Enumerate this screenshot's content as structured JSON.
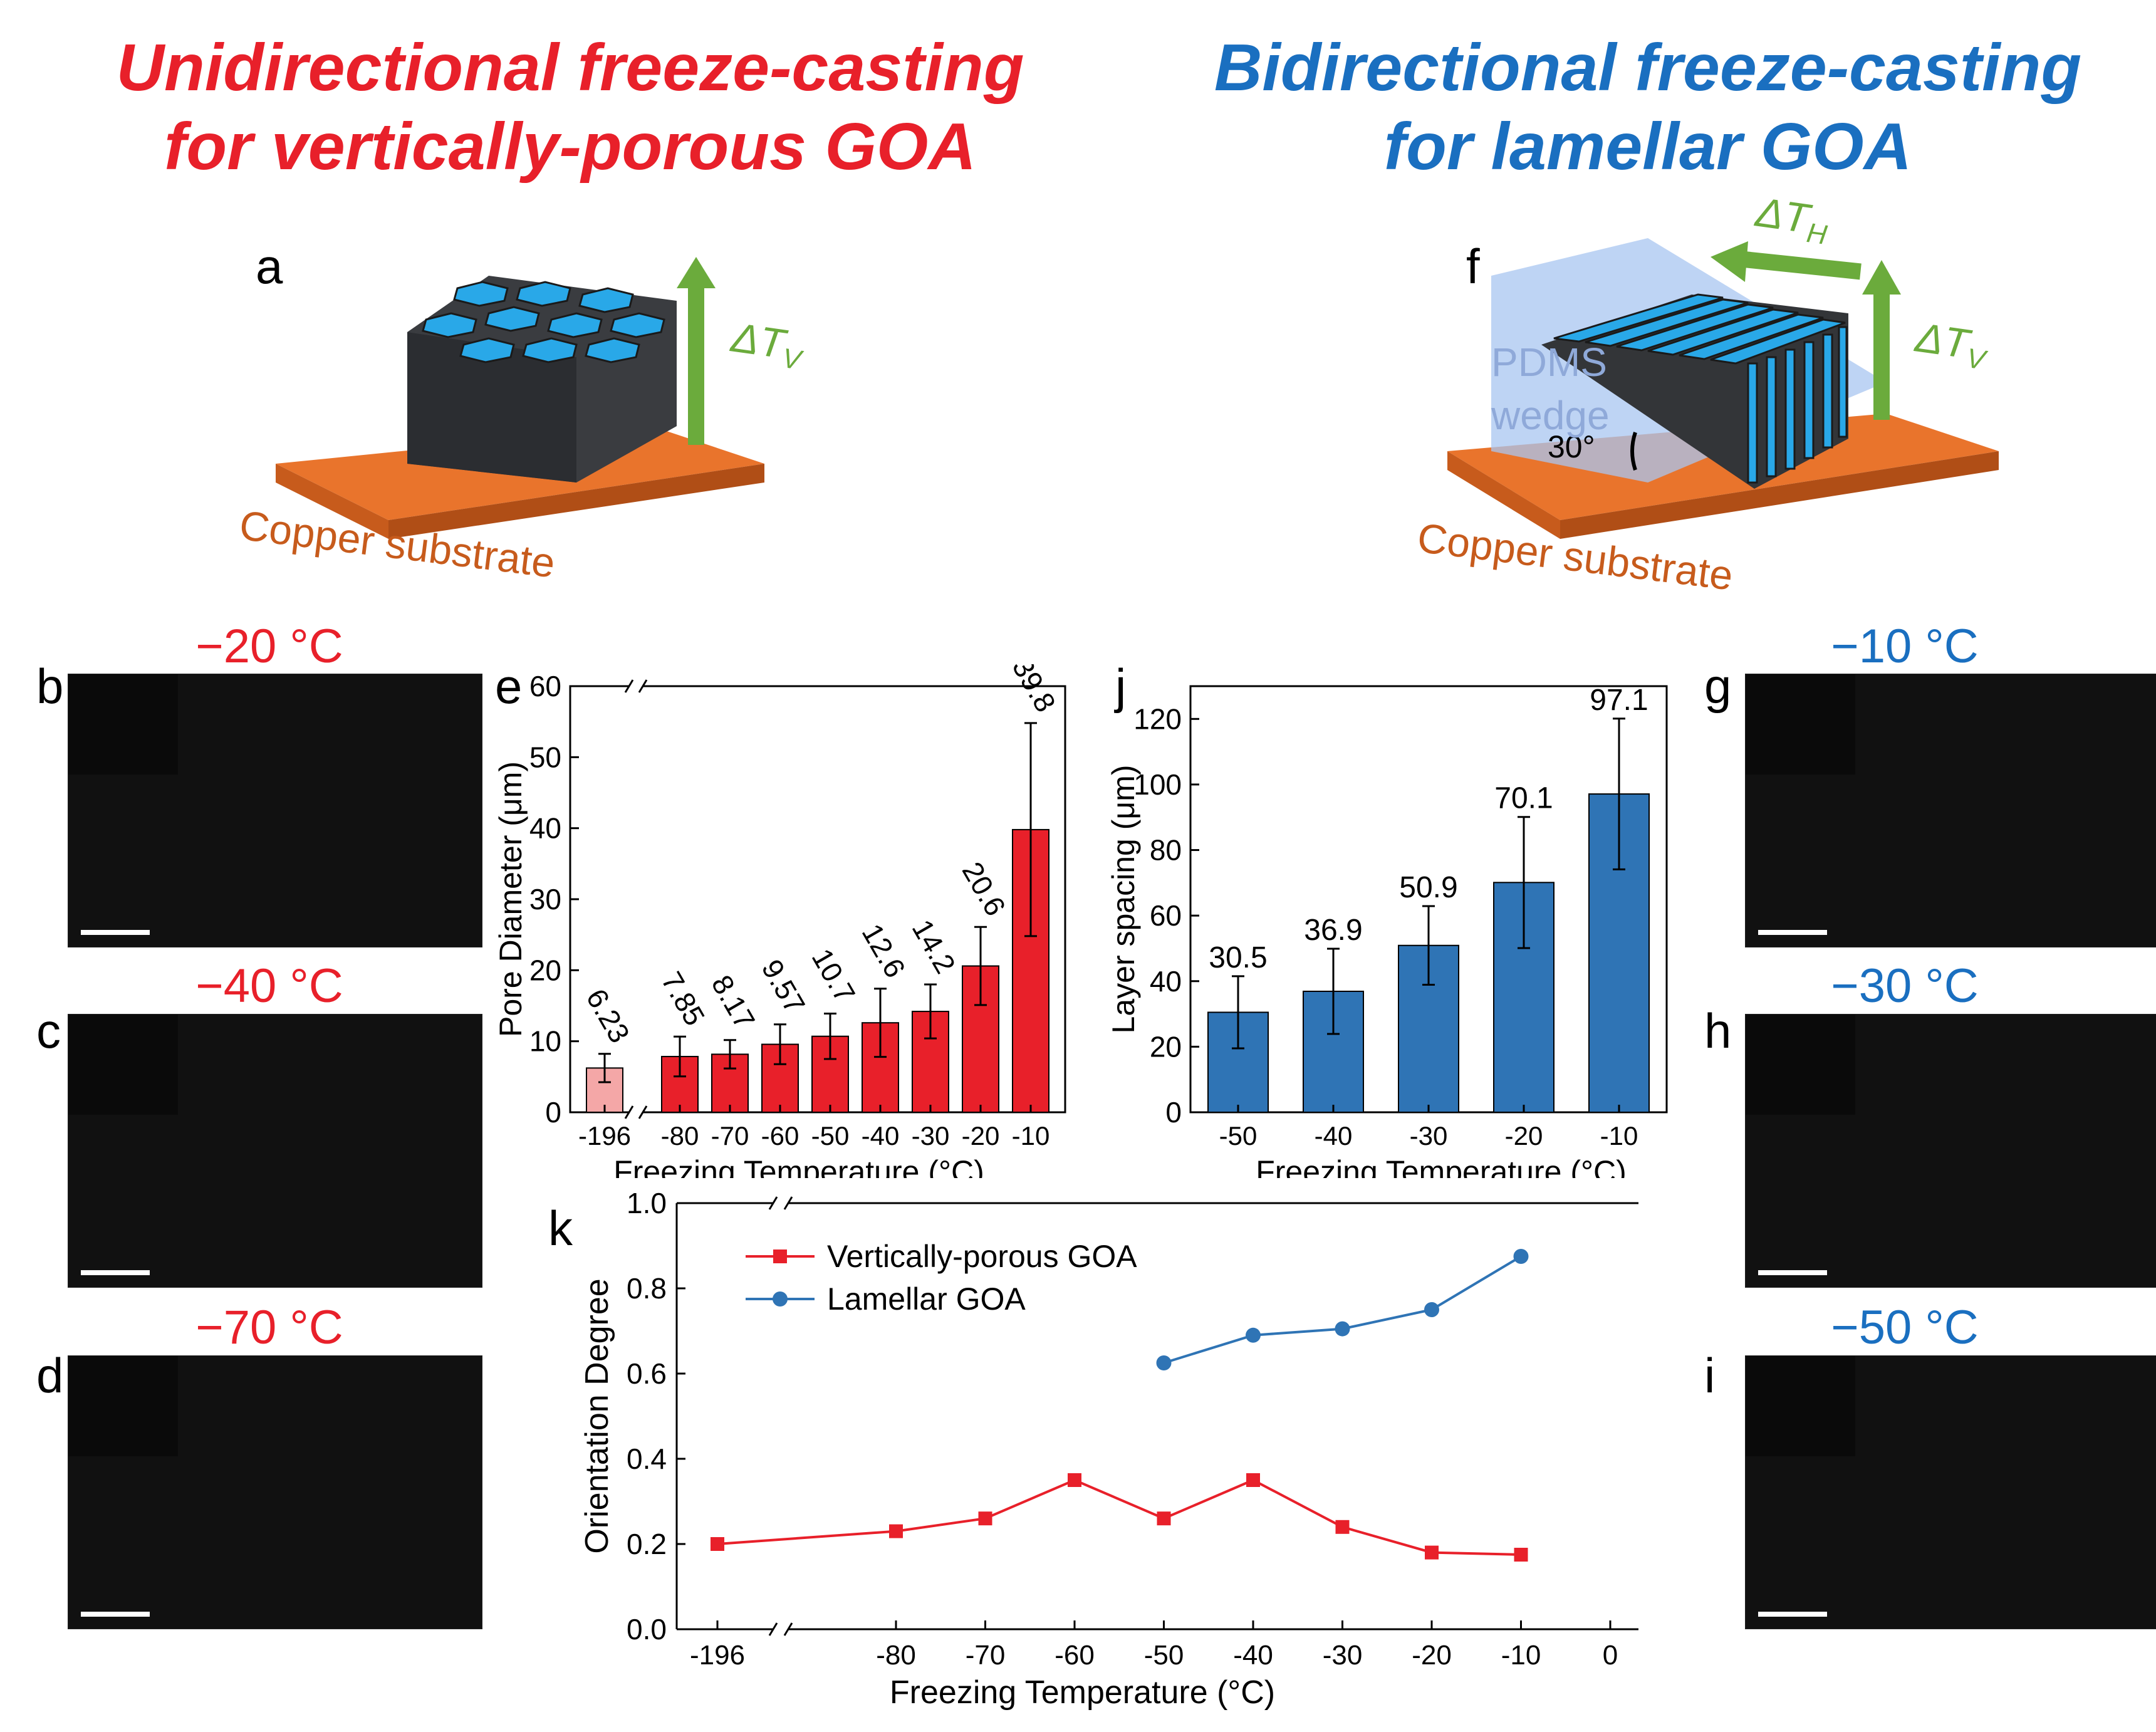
{
  "titles": {
    "left_line1": "Unidirectional freeze-casting",
    "left_line2": "for vertically-porous GOA",
    "right_line1": "Bidirectional freeze-casting",
    "right_line2": "for lamellar GOA"
  },
  "schematic_a": {
    "panel": "a",
    "delta_t_v": "ΔT",
    "delta_t_v_sub": "V",
    "substrate": "Copper substrate"
  },
  "schematic_f": {
    "panel": "f",
    "delta_t_h": "ΔT",
    "delta_t_h_sub": "H",
    "delta_t_v": "ΔT",
    "delta_t_v_sub": "V",
    "wedge_line1": "PDMS",
    "wedge_line2": "wedge",
    "angle": "30°",
    "substrate": "Copper substrate"
  },
  "sem_left": [
    {
      "panel": "b",
      "temp": "−20 °C"
    },
    {
      "panel": "c",
      "temp": "−40 °C"
    },
    {
      "panel": "d",
      "temp": "−70 °C"
    }
  ],
  "sem_right": [
    {
      "panel": "g",
      "temp": "−10 °C"
    },
    {
      "panel": "h",
      "temp": "−30 °C"
    },
    {
      "panel": "i",
      "temp": "−50 °C"
    }
  ],
  "chart_data": [
    {
      "panel": "e",
      "type": "bar",
      "xlabel": "Freezing Temperature (°C)",
      "ylabel": "Pore Diameter (μm)",
      "ylim": [
        0,
        60
      ],
      "yticks": [
        "0",
        "10",
        "20",
        "30",
        "40",
        "50",
        "60"
      ],
      "categories": [
        "-196",
        "-80",
        "-70",
        "-60",
        "-50",
        "-40",
        "-30",
        "-20",
        "-10"
      ],
      "values": [
        6.23,
        7.85,
        8.17,
        9.57,
        10.7,
        12.6,
        14.2,
        20.6,
        39.8
      ],
      "value_labels": [
        "6.23",
        "7.85",
        "8.17",
        "9.57",
        "10.7",
        "12.6",
        "14.2",
        "20.6",
        "39.8"
      ],
      "errors": [
        2.0,
        2.8,
        2.0,
        2.8,
        3.2,
        4.8,
        3.8,
        5.5,
        15.0
      ],
      "colors": [
        "#f4a7a7",
        "#e8202a",
        "#e8202a",
        "#e8202a",
        "#e8202a",
        "#e8202a",
        "#e8202a",
        "#e8202a",
        "#e8202a"
      ],
      "axis_break": true
    },
    {
      "panel": "j",
      "type": "bar",
      "xlabel": "Freezing Temperature (°C)",
      "ylabel": "Layer spacing (μm)",
      "ylim": [
        0,
        130
      ],
      "yticks": [
        "0",
        "20",
        "40",
        "60",
        "80",
        "100",
        "120"
      ],
      "categories": [
        "-50",
        "-40",
        "-30",
        "-20",
        "-10"
      ],
      "values": [
        30.5,
        36.9,
        50.9,
        70.1,
        97.1
      ],
      "value_labels": [
        "30.5",
        "36.9",
        "50.9",
        "70.1",
        "97.1"
      ],
      "errors": [
        11,
        13,
        12,
        20,
        23
      ],
      "color": "#2f74b5"
    },
    {
      "panel": "k",
      "type": "line",
      "xlabel": "Freezing Temperature (°C)",
      "ylabel": "Orientation Degree",
      "ylim": [
        0.0,
        1.0
      ],
      "yticks": [
        "0.0",
        "0.2",
        "0.4",
        "0.6",
        "0.8",
        "1.0"
      ],
      "xticks": [
        "-196",
        "-80",
        "-70",
        "-60",
        "-50",
        "-40",
        "-30",
        "-20",
        "-10",
        "0"
      ],
      "axis_break": true,
      "series": [
        {
          "name": "Vertically-porous GOA",
          "color": "#e8202a",
          "marker": "square",
          "x": [
            "-196",
            "-80",
            "-70",
            "-60",
            "-50",
            "-40",
            "-30",
            "-20",
            "-10"
          ],
          "values": [
            0.2,
            0.23,
            0.26,
            0.35,
            0.26,
            0.35,
            0.24,
            0.18,
            0.175
          ]
        },
        {
          "name": "Lamellar GOA",
          "color": "#2f74b5",
          "marker": "circle",
          "x": [
            "-50",
            "-40",
            "-30",
            "-20",
            "-10"
          ],
          "values": [
            0.625,
            0.69,
            0.705,
            0.75,
            0.875
          ]
        }
      ]
    }
  ]
}
